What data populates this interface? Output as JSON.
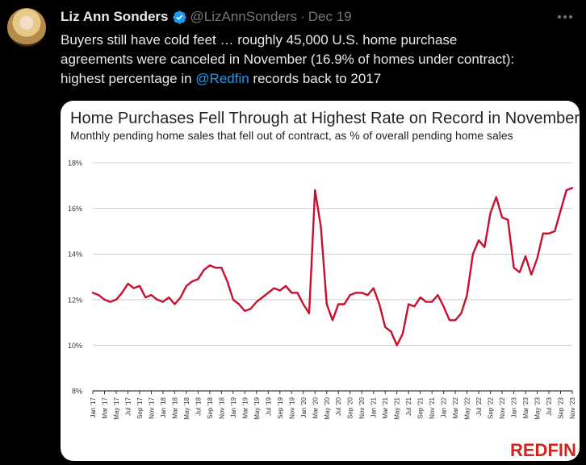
{
  "tweet": {
    "author_name": "Liz Ann Sonders",
    "handle": "@LizAnnSonders",
    "separator": "·",
    "date": "Dec 19",
    "text_line1": "Buyers still have cold feet … roughly 45,000 U.S. home purchase",
    "text_line2": "agreements were canceled in November (16.9% of homes under contract):",
    "text_line3_before": "highest percentage in ",
    "mention": "@Redfin",
    "text_line3_after": " records back to 2017"
  },
  "icons": {
    "avatar": "avatar",
    "verified": "verified-badge-icon",
    "more": "more-options-icon"
  },
  "colors": {
    "line": "#c8102e",
    "mention": "#1d9bf0",
    "brand": "#d0241c"
  },
  "brand_label": "REDFIN",
  "chart_data": {
    "type": "line",
    "title": "Home Purchases Fell Through at Highest Rate on Record in November",
    "subtitle": "Monthly pending home sales that fell out of contract, as % of overall pending home sales",
    "xlabel": "",
    "ylabel": "",
    "ylim": [
      8,
      18
    ],
    "yticks": [
      "8%",
      "10%",
      "12%",
      "14%",
      "16%",
      "18%"
    ],
    "ytick_values": [
      8,
      10,
      12,
      14,
      16,
      18
    ],
    "grid": true,
    "x_tick_labels": [
      "Jan '17",
      "Mar '17",
      "May '17",
      "Jul '17",
      "Sep '17",
      "Nov '17",
      "Jan '18",
      "Mar '18",
      "May '18",
      "Jul '18",
      "Sep '18",
      "Nov '18",
      "Jan '19",
      "Mar '19",
      "May '19",
      "Jul '19",
      "Sep '19",
      "Nov '19",
      "Jan '20",
      "Mar '20",
      "May '20",
      "Jul '20",
      "Sep '20",
      "Nov '20",
      "Jan '21",
      "Mar '21",
      "May '21",
      "Jul '21",
      "Sep '21",
      "Nov '21",
      "Jan '22",
      "Mar '22",
      "May '22",
      "Jul '22",
      "Sep '22",
      "Nov '22",
      "Jan '23",
      "Mar '23",
      "May '23",
      "Jul '23",
      "Sep '23",
      "Nov '23"
    ],
    "series": [
      {
        "values": [
          12.3,
          12.2,
          12.0,
          11.9,
          12.0,
          12.3,
          12.7,
          12.5,
          12.6,
          12.1,
          12.2,
          12.0,
          11.9,
          12.1,
          11.8,
          12.1,
          12.6,
          12.8,
          12.9,
          13.3,
          13.5,
          13.4,
          13.4,
          12.8,
          12.0,
          11.8,
          11.5,
          11.6,
          11.9,
          12.1,
          12.3,
          12.5,
          12.4,
          12.6,
          12.3,
          12.3,
          11.8,
          11.4,
          16.8,
          15.2,
          11.8,
          11.1,
          11.8,
          11.8,
          12.2,
          12.3,
          12.3,
          12.2,
          12.5,
          11.8,
          10.8,
          10.6,
          10.0,
          10.5,
          11.8,
          11.7,
          12.1,
          11.9,
          11.9,
          12.2,
          11.7,
          11.1,
          11.1,
          11.4,
          12.2,
          14.0,
          14.6,
          14.3,
          15.8,
          16.5,
          15.6,
          15.5,
          13.4,
          13.2,
          13.9,
          13.1,
          13.8,
          14.9,
          14.9,
          15.0,
          15.9,
          16.8,
          16.9
        ]
      }
    ]
  }
}
